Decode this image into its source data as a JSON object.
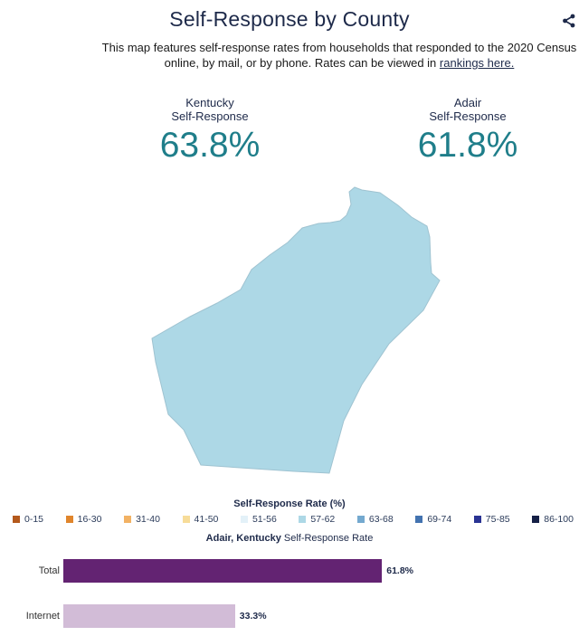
{
  "header": {
    "title": "Self-Response by County",
    "description": "This map features self-response rates from households that responded to the 2020 Census online, by mail, or by phone. Rates can be viewed in",
    "link_text": "rankings here."
  },
  "stats": {
    "state": {
      "name": "Kentucky",
      "label": "Self-Response",
      "value": "63.8%"
    },
    "county": {
      "name": "Adair",
      "label": "Self-Response",
      "value": "61.8%"
    }
  },
  "map": {
    "county_fill": "#add8e6",
    "county_stroke": "#9fc3d1"
  },
  "legend": {
    "title": "Self-Response Rate (%)",
    "items": [
      {
        "label": "0-15",
        "color": "#b4591c"
      },
      {
        "label": "16-30",
        "color": "#e0852c"
      },
      {
        "label": "31-40",
        "color": "#f2b264"
      },
      {
        "label": "41-50",
        "color": "#f7dc99"
      },
      {
        "label": "51-56",
        "color": "#e3f1f8"
      },
      {
        "label": "57-62",
        "color": "#add8e6"
      },
      {
        "label": "63-68",
        "color": "#74a9cf"
      },
      {
        "label": "69-74",
        "color": "#4373b0"
      },
      {
        "label": "75-85",
        "color": "#2a3393"
      },
      {
        "label": "86-100",
        "color": "#152046"
      }
    ]
  },
  "chart_data": {
    "type": "bar",
    "title_bold": "Adair, Kentucky",
    "title_rest": "Self-Response Rate",
    "categories": [
      "Total",
      "Internet"
    ],
    "values": [
      61.8,
      33.3
    ],
    "value_labels": [
      "61.8%",
      "33.3%"
    ],
    "colors": [
      "#632372",
      "#d2bcd7"
    ],
    "xlim": [
      0,
      100
    ]
  }
}
